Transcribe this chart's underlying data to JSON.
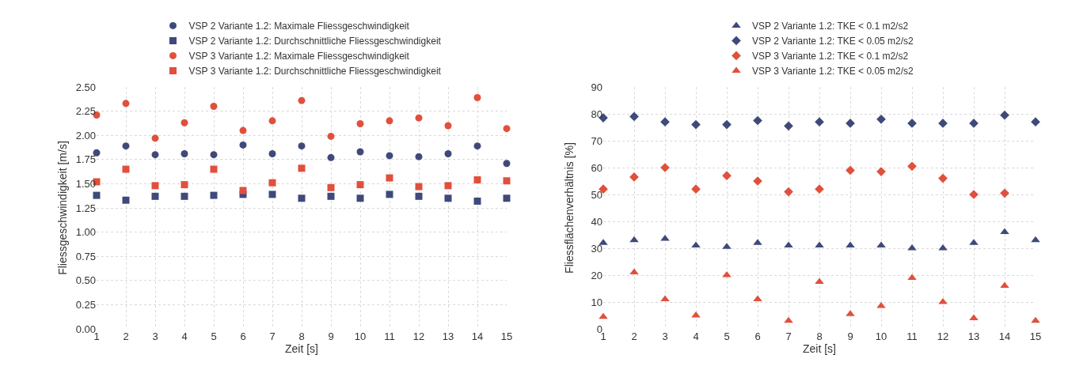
{
  "chart_data": [
    {
      "type": "scatter",
      "xlabel": "Zeit [s]",
      "ylabel": "Fliessgeschwindigkeit [m/s]",
      "x": [
        1,
        2,
        3,
        4,
        5,
        6,
        7,
        8,
        9,
        10,
        11,
        12,
        13,
        14,
        15
      ],
      "xlim": [
        1,
        15
      ],
      "xticks": [
        1,
        2,
        3,
        4,
        5,
        6,
        7,
        8,
        9,
        10,
        11,
        12,
        13,
        14,
        15
      ],
      "ylim": [
        0,
        2.5
      ],
      "yticks": [
        {
          "value": 0,
          "label": "0.00"
        },
        {
          "value": 0.25,
          "label": "0.25"
        },
        {
          "value": 0.5,
          "label": "0.50"
        },
        {
          "value": 0.75,
          "label": "0.75"
        },
        {
          "value": 1,
          "label": "1.00"
        },
        {
          "value": 1.25,
          "label": "1.25"
        },
        {
          "value": 1.5,
          "label": "1.50"
        },
        {
          "value": 1.75,
          "label": "1.75"
        },
        {
          "value": 2,
          "label": "2.00"
        },
        {
          "value": 2.25,
          "label": "2.25"
        },
        {
          "value": 2.5,
          "label": "2.50"
        }
      ],
      "grid": true,
      "legend": "top",
      "series": [
        {
          "name": "VSP 2 Variante 1.2: Maximale Fliessgeschwindigkeit",
          "color": "#3f4a7a",
          "marker": "circle",
          "values": [
            1.82,
            1.89,
            1.8,
            1.81,
            1.8,
            1.9,
            1.81,
            1.89,
            1.77,
            1.83,
            1.79,
            1.78,
            1.81,
            1.89,
            1.71
          ]
        },
        {
          "name": "VSP 2 Variante 1.2: Durchschnittliche Fliessgeschwindigkeit",
          "color": "#3f4a7a",
          "marker": "square",
          "values": [
            1.38,
            1.33,
            1.37,
            1.37,
            1.38,
            1.39,
            1.39,
            1.35,
            1.37,
            1.35,
            1.39,
            1.37,
            1.35,
            1.32,
            1.35
          ]
        },
        {
          "name": "VSP 3 Variante 1.2: Maximale Fliessgeschwindigkeit",
          "color": "#e0503c",
          "marker": "circle",
          "values": [
            2.21,
            2.33,
            1.97,
            2.13,
            2.3,
            2.05,
            2.15,
            2.36,
            1.99,
            2.12,
            2.15,
            2.18,
            2.1,
            2.39,
            2.07
          ]
        },
        {
          "name": "VSP 3 Variante 1.2: Durchschnittliche Fliessgeschwindigkeit",
          "color": "#e0503c",
          "marker": "square",
          "values": [
            1.52,
            1.65,
            1.48,
            1.49,
            1.65,
            1.43,
            1.51,
            1.66,
            1.46,
            1.49,
            1.56,
            1.47,
            1.48,
            1.54,
            1.53
          ]
        }
      ]
    },
    {
      "type": "scatter",
      "xlabel": "Zeit [s]",
      "ylabel": "Fliessflächenverhältnis [%]",
      "x": [
        1,
        2,
        3,
        4,
        5,
        6,
        7,
        8,
        9,
        10,
        11,
        12,
        13,
        14,
        15
      ],
      "xlim": [
        1,
        15
      ],
      "xticks": [
        1,
        2,
        3,
        4,
        5,
        6,
        7,
        8,
        9,
        10,
        11,
        12,
        13,
        14,
        15
      ],
      "ylim": [
        0,
        90
      ],
      "yticks": [
        0,
        10,
        20,
        30,
        40,
        50,
        60,
        70,
        80,
        90
      ],
      "grid": true,
      "legend": "top",
      "series": [
        {
          "name": "VSP 2 Variante 1.2: TKE < 0.1 m2/s2",
          "color": "#3f4a7a",
          "marker": "triangle",
          "values": [
            32,
            33,
            33.5,
            31,
            30.5,
            32,
            31,
            31,
            31,
            31,
            30,
            30,
            32,
            36,
            33
          ]
        },
        {
          "name": "VSP 2 Variante 1.2: TKE < 0.05 m2/s2",
          "color": "#3f4a7a",
          "marker": "diamond",
          "values": [
            78.5,
            79,
            77,
            76,
            76,
            77.5,
            75.5,
            77,
            76.5,
            78,
            76.5,
            76.5,
            76.5,
            79.5,
            77
          ]
        },
        {
          "name": "VSP 3 Variante 1.2: TKE < 0.1 m2/s2",
          "color": "#e0503c",
          "marker": "diamond",
          "values": [
            52,
            56.5,
            60,
            52,
            57,
            55,
            51,
            52,
            59,
            58.5,
            60.5,
            56,
            50,
            50.5,
            null
          ]
        },
        {
          "name": "VSP 3 Variante 1.2: TKE < 0.05 m2/s2",
          "color": "#e0503c",
          "marker": "triangle",
          "values": [
            4.5,
            21,
            11,
            5,
            20,
            11,
            3,
            17.5,
            5.5,
            8.5,
            19,
            10,
            4,
            16,
            3
          ]
        }
      ]
    }
  ]
}
